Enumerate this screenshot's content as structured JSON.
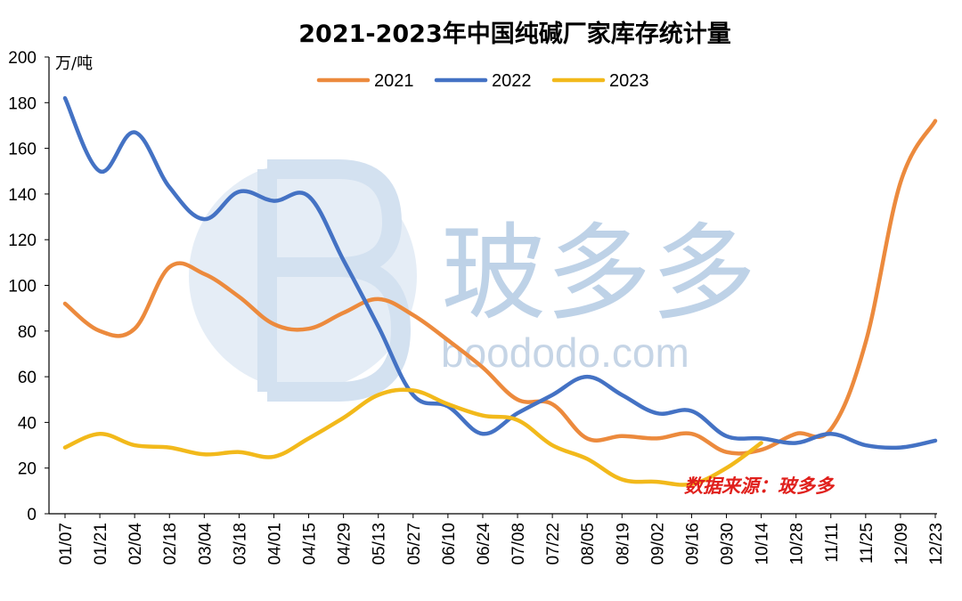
{
  "chart_data": {
    "type": "line",
    "title": "2021-2023年中国纯碱厂家库存统计量",
    "ylabel": "万/吨",
    "ylim": [
      0,
      200
    ],
    "yticks": [
      0,
      20,
      40,
      60,
      80,
      100,
      120,
      140,
      160,
      180,
      200
    ],
    "categories": [
      "01/07",
      "01/21",
      "02/04",
      "02/18",
      "03/04",
      "03/18",
      "04/01",
      "04/15",
      "04/29",
      "05/13",
      "05/27",
      "06/10",
      "06/24",
      "07/08",
      "07/22",
      "08/05",
      "08/19",
      "09/02",
      "09/16",
      "09/30",
      "10/14",
      "10/28",
      "11/11",
      "11/25",
      "12/09",
      "12/23"
    ],
    "legend_position": "top",
    "grid": false,
    "series": [
      {
        "name": "2021",
        "color": "#ec8a3d",
        "values": [
          92,
          80,
          81,
          108,
          105,
          95,
          83,
          81,
          88,
          94,
          87,
          76,
          64,
          50,
          48,
          33,
          34,
          33,
          35,
          27,
          28,
          35,
          37,
          75,
          145,
          172
        ]
      },
      {
        "name": "2022",
        "color": "#4472c4",
        "values": [
          182,
          150,
          167,
          143,
          129,
          141,
          137,
          139,
          111,
          82,
          52,
          47,
          35,
          44,
          52,
          60,
          52,
          44,
          45,
          34,
          33,
          31,
          35,
          30,
          29,
          32
        ]
      },
      {
        "name": "2023",
        "color": "#f2b91b",
        "values": [
          29,
          35,
          30,
          29,
          26,
          27,
          25,
          33,
          42,
          52,
          54,
          48,
          43,
          41,
          30,
          24,
          15,
          14,
          13,
          20,
          31,
          null,
          null,
          null,
          null,
          null
        ]
      }
    ]
  },
  "watermark": {
    "brand": "玻多多",
    "site": "boododo.com"
  },
  "source_note": "数据来源：玻多多"
}
